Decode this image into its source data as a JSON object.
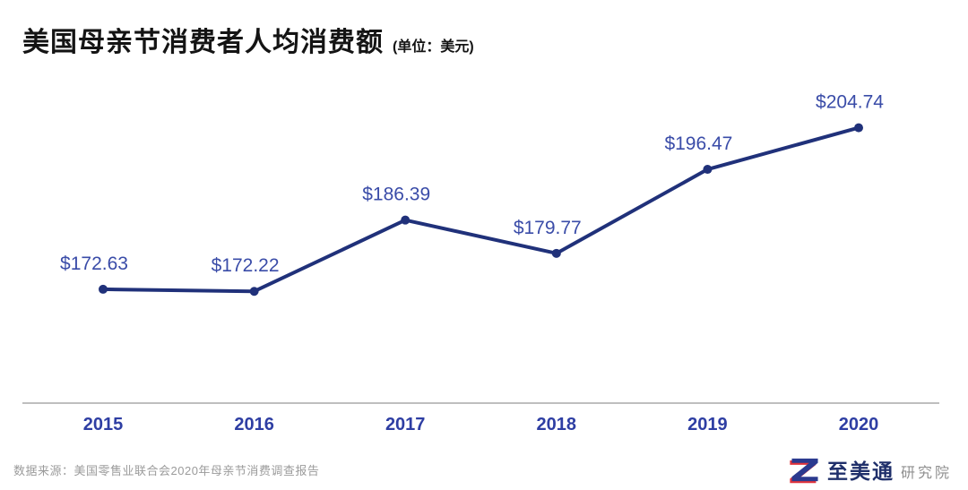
{
  "header": {
    "title": "美国母亲节消费者人均消费额",
    "unit": "(单位：美元)"
  },
  "chart_data": {
    "type": "line",
    "title": "美国母亲节消费者人均消费额",
    "unit_label": "美元",
    "categories": [
      "2015",
      "2016",
      "2017",
      "2018",
      "2019",
      "2020"
    ],
    "values": [
      172.63,
      172.22,
      186.39,
      179.77,
      196.47,
      204.74
    ],
    "point_labels": [
      "$172.63",
      "$172.22",
      "$186.39",
      "$179.77",
      "$196.47",
      "$204.74"
    ],
    "xlabel": "",
    "ylabel": "",
    "ylim": [
      150,
      215
    ],
    "grid": false,
    "legend": "none",
    "colors": {
      "line": "#20317a",
      "point": "#20317a",
      "data_label": "#3a4ca8",
      "tick_label": "#2e3ea3",
      "axis": "#a9a9a9"
    }
  },
  "footer": {
    "source": "数据来源：美国零售业联合会2020年母亲节消费调查报告",
    "logo_name": "至美通",
    "logo_suffix": "研究院",
    "logo_colors": {
      "blue": "#2b3a8f",
      "red": "#e0333c"
    }
  }
}
